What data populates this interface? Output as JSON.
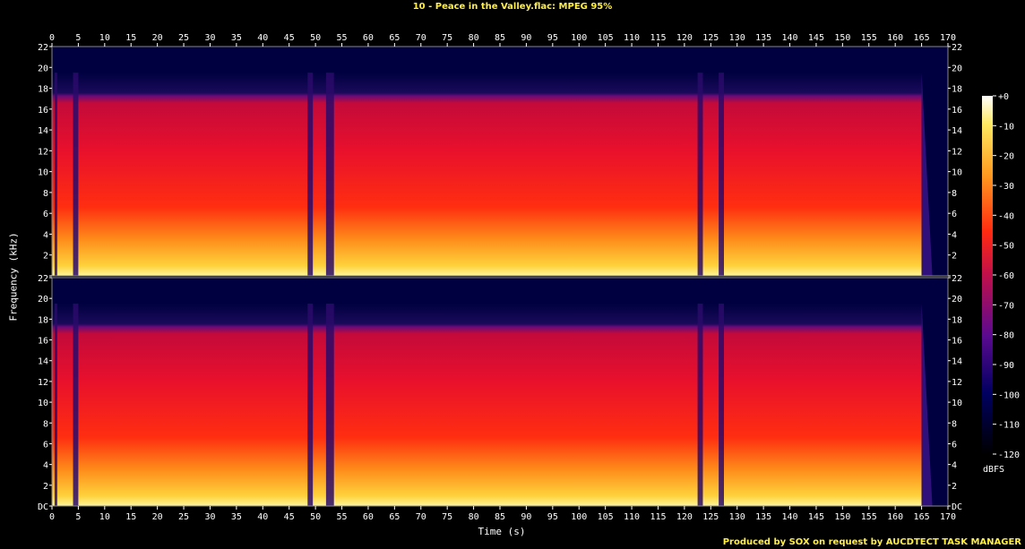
{
  "title": "10 - Peace in the Valley.flac: MPEG 95%",
  "credit": "Produced by SOX on request by AUCDTECT TASK MANAGER",
  "chart_data": {
    "type": "heatmap",
    "title": "10 - Peace in the Valley.flac: MPEG 95%",
    "xlabel": "Time (s)",
    "ylabel": "Frequency (kHz)",
    "xlim": [
      0,
      170
    ],
    "ylim": [
      0,
      22
    ],
    "x_ticks": [
      "0",
      "5",
      "10",
      "15",
      "20",
      "25",
      "30",
      "35",
      "40",
      "45",
      "50",
      "55",
      "60",
      "65",
      "70",
      "75",
      "80",
      "85",
      "90",
      "95",
      "100",
      "105",
      "110",
      "115",
      "120",
      "125",
      "130",
      "135",
      "140",
      "145",
      "150",
      "155",
      "160",
      "165",
      "170"
    ],
    "y_ticks": [
      "DC",
      "2",
      "4",
      "6",
      "8",
      "10",
      "12",
      "14",
      "16",
      "18",
      "20",
      "22"
    ],
    "channels": 2,
    "colorbar": {
      "label": "dBFS",
      "ticks": [
        "+0",
        "-10",
        "-20",
        "-30",
        "-40",
        "-50",
        "-60",
        "-70",
        "-80",
        "-90",
        "-100",
        "-110",
        "-120"
      ],
      "range": [
        -120,
        0
      ]
    },
    "cutoff_khz": 19.5,
    "track_end_s": 165,
    "silent_gaps_s": [
      [
        0.5,
        1
      ],
      [
        4,
        5
      ],
      [
        48.5,
        49.5
      ],
      [
        52,
        53.5
      ],
      [
        122.5,
        123.5
      ],
      [
        126.5,
        127.5
      ]
    ]
  }
}
